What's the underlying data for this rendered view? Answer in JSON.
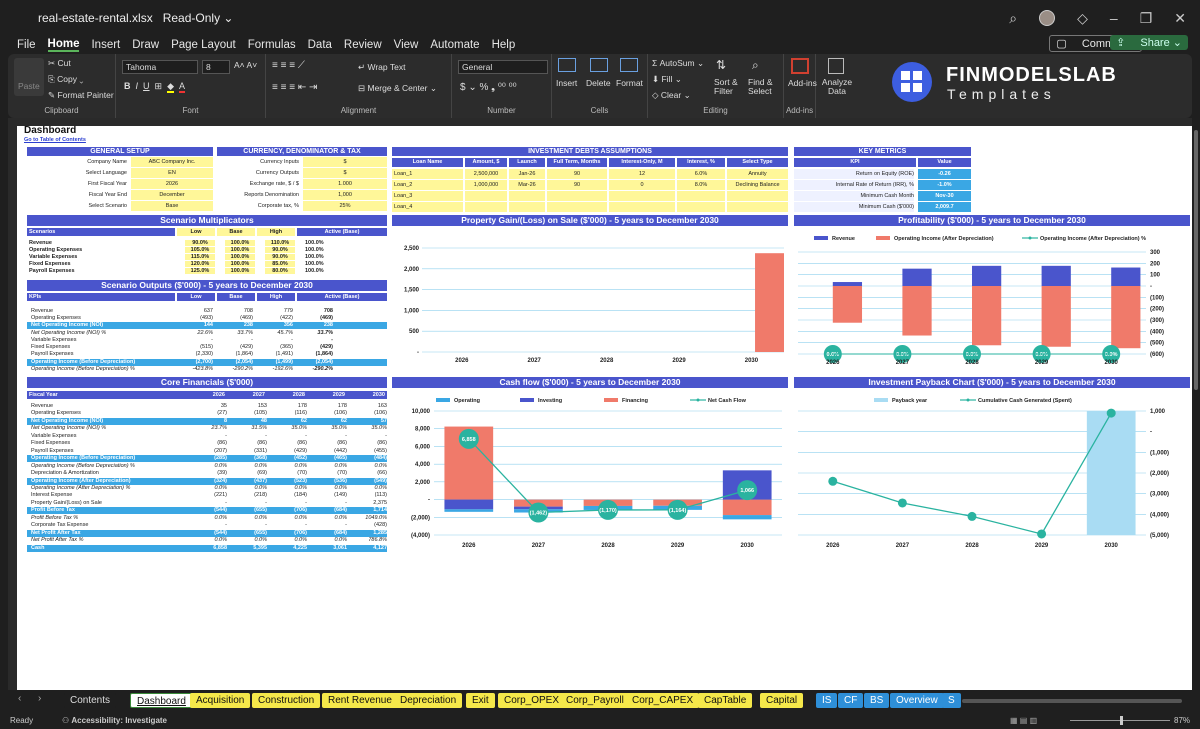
{
  "window": {
    "filename": "real-estate-rental.xlsx",
    "mode": "Read-Only"
  },
  "menu": [
    "File",
    "Home",
    "Insert",
    "Draw",
    "Page Layout",
    "Formulas",
    "Data",
    "Review",
    "View",
    "Automate",
    "Help"
  ],
  "menu_right": {
    "comments": "Comments",
    "share": "Share"
  },
  "ribbon": {
    "paste": "Paste",
    "cut": "Cut",
    "copy": "Copy",
    "format_painter": "Format Painter",
    "clipboard": "Clipboard",
    "font_name": "Tahoma",
    "font_size": "8",
    "font": "Font",
    "wrap_text": "Wrap Text",
    "merge_center": "Merge & Center",
    "alignment": "Alignment",
    "number_format": "General",
    "number": "Number",
    "insert": "Insert",
    "delete": "Delete",
    "format": "Format",
    "cells": "Cells",
    "autosum": "AutoSum",
    "fill": "Fill",
    "clear": "Clear",
    "sort_filter": "Sort & Filter",
    "find_select": "Find & Select",
    "editing": "Editing",
    "addins": "Add-ins",
    "addins_group": "Add-ins",
    "analyze_data": "Analyze Data"
  },
  "brand": {
    "line1": "FINMODELSLAB",
    "line2": "Templates"
  },
  "sheet": {
    "title": "Dashboard",
    "toc_link": "Go to Table of Contents",
    "general_setup": {
      "title": "GENERAL SETUP",
      "rows": [
        [
          "Company Name",
          "ABC Company Inc."
        ],
        [
          "Select Language",
          "EN"
        ],
        [
          "First Fiscal Year",
          "2026"
        ],
        [
          "Fiscal Year End",
          "December"
        ],
        [
          "Select Scenario",
          "Base"
        ]
      ]
    },
    "currency": {
      "title": "CURRENCY, DENOMINATOR & TAX",
      "rows": [
        [
          "Currency Inputs",
          "$"
        ],
        [
          "Currency Outputs",
          "$"
        ],
        [
          "Exchange rate, $ / $",
          "1.000"
        ],
        [
          "Reports Denomination",
          "1,000"
        ],
        [
          "Corporate tax, %",
          "25%"
        ]
      ]
    },
    "debts": {
      "title": "INVESTMENT DEBTS ASSUMPTIONS",
      "headers": [
        "Loan Name",
        "Amount, $",
        "Launch",
        "Full Term, Months",
        "Interest-Only, M",
        "Interest, %",
        "Select Type"
      ],
      "rows": [
        [
          "Loan_1",
          "2,500,000",
          "Jan-26",
          "90",
          "12",
          "6.0%",
          "Annuity"
        ],
        [
          "Loan_2",
          "1,000,000",
          "Mar-26",
          "90",
          "0",
          "8.0%",
          "Declining Balance"
        ],
        [
          "Loan_3",
          "",
          "",
          "",
          "",
          "",
          ""
        ],
        [
          "Loan_4",
          "",
          "",
          "",
          "",
          "",
          ""
        ]
      ]
    },
    "metrics": {
      "title": "KEY METRICS",
      "headers": [
        "KPI",
        "Value"
      ],
      "rows": [
        [
          "Return on Equity (ROE)",
          "-0.26"
        ],
        [
          "Internal Rate of Return (IRR), %",
          "-1.0%"
        ],
        [
          "Minimum Cash Month",
          "Nov-30"
        ],
        [
          "Minimum Cash ($'000)",
          "2,009.7"
        ]
      ]
    },
    "multipliers": {
      "title": "Scenario Multiplicators",
      "headers": [
        "Scenarios",
        "Low",
        "Base",
        "High",
        "Active (Base)"
      ],
      "rows": [
        [
          "Revenue",
          "90.0%",
          "100.0%",
          "110.0%",
          "100.0%"
        ],
        [
          "Operating Expenses",
          "105.0%",
          "100.0%",
          "90.0%",
          "100.0%"
        ],
        [
          "Variable Expenses",
          "115.0%",
          "100.0%",
          "90.0%",
          "100.0%"
        ],
        [
          "Fixed Expenses",
          "120.0%",
          "100.0%",
          "85.0%",
          "100.0%"
        ],
        [
          "Payroll Expenses",
          "125.0%",
          "100.0%",
          "80.0%",
          "100.0%"
        ]
      ]
    },
    "outputs": {
      "title": "Scenario Outputs ($'000) - 5 years to December 2030",
      "headers": [
        "KPIs",
        "Low",
        "Base",
        "High",
        "Active (Base)"
      ],
      "rows": [
        [
          "Revenue",
          "637",
          "708",
          "779",
          "708"
        ],
        [
          "Operating Expenses",
          "(493)",
          "(469)",
          "(422)",
          "(469)"
        ],
        [
          "Net Operating Income (NOI)",
          "144",
          "238",
          "356",
          "238"
        ],
        [
          "Net Operating Income (NOI) %",
          "22.6%",
          "33.7%",
          "45.7%",
          "33.7%"
        ],
        [
          "Variable Expenses",
          "-",
          "-",
          "-",
          "-"
        ],
        [
          "Fixed Expenses",
          "(515)",
          "(429)",
          "(365)",
          "(429)"
        ],
        [
          "Payroll Expenses",
          "(2,330)",
          "(1,864)",
          "(1,491)",
          "(1,864)"
        ],
        [
          "Operating Income (Before Depreciation)",
          "(2,700)",
          "(2,054)",
          "(1,499)",
          "(2,054)"
        ],
        [
          "Operating Income (Before Depreciation) %",
          "-423.8%",
          "-290.2%",
          "-192.6%",
          "-290.2%"
        ]
      ]
    },
    "core": {
      "title": "Core Financials ($'000)",
      "headers": [
        "Fiscal Year",
        "2026",
        "2027",
        "2028",
        "2029",
        "2030"
      ],
      "rows": [
        [
          "Revenue",
          "35",
          "153",
          "178",
          "178",
          "163"
        ],
        [
          "Operating Expenses",
          "(27)",
          "(105)",
          "(116)",
          "(106)",
          "(106)"
        ],
        [
          "Net Operating Income (NOI)",
          "8",
          "48",
          "62",
          "62",
          "57"
        ],
        [
          "Net Operating Income (NOI) %",
          "23.7%",
          "31.5%",
          "35.0%",
          "35.0%",
          "35.0%"
        ],
        [
          "Variable Expenses",
          "-",
          "-",
          "-",
          "-",
          "-"
        ],
        [
          "Fixed Expenses",
          "(86)",
          "(86)",
          "(86)",
          "(86)",
          "(86)"
        ],
        [
          "Payroll Expenses",
          "(207)",
          "(331)",
          "(429)",
          "(442)",
          "(455)"
        ],
        [
          "Operating Income (Before Depreciation)",
          "(285)",
          "(368)",
          "(452)",
          "(465)",
          "(484)"
        ],
        [
          "Operating Income (Before Depreciation) %",
          "0.0%",
          "0.0%",
          "0.0%",
          "0.0%",
          "0.0%"
        ],
        [
          "Depreciation & Amortization",
          "(39)",
          "(69)",
          "(70)",
          "(70)",
          "(66)"
        ],
        [
          "Operating Income (After Depreciation)",
          "(324)",
          "(437)",
          "(523)",
          "(536)",
          "(549)"
        ],
        [
          "Operating Income (After Depreciation) %",
          "0.0%",
          "0.0%",
          "0.0%",
          "0.0%",
          "0.0%"
        ],
        [
          "Interest Expense",
          "(221)",
          "(218)",
          "(184)",
          "(149)",
          "(113)"
        ],
        [
          "Property Gain/(Loss) on Sale",
          "-",
          "-",
          "-",
          "-",
          "2,375"
        ],
        [
          "Profit Before Tax",
          "(544)",
          "(655)",
          "(706)",
          "(684)",
          "1,714"
        ],
        [
          "Profit Before Tax %",
          "0.0%",
          "0.0%",
          "0.0%",
          "0.0%",
          "1049.0%"
        ],
        [
          "Corporate Tax Expense",
          "-",
          "-",
          "-",
          "-",
          "(428)"
        ],
        [
          "Net Profit After Tax",
          "(544)",
          "(655)",
          "(706)",
          "(684)",
          "1,285"
        ],
        [
          "Net Profit After Tax %",
          "0.0%",
          "0.0%",
          "0.0%",
          "0.0%",
          "786.8%"
        ],
        [
          "Cash",
          "6,858",
          "5,395",
          "4,225",
          "3,061",
          "4,127"
        ]
      ]
    }
  },
  "chart_data": [
    {
      "type": "bar",
      "title": "Property Gain/(Loss) on Sale ($'000) - 5 years to December 2030",
      "categories": [
        "2026",
        "2027",
        "2028",
        "2029",
        "2030"
      ],
      "values": [
        0,
        0,
        0,
        0,
        2375
      ],
      "ylim": [
        0,
        2500
      ],
      "yticks": [
        "2,500",
        "2,000",
        "1,500",
        "1,000",
        "500",
        "-"
      ],
      "color": "#f07a6a"
    },
    {
      "type": "bar",
      "title": "Profitability ($'000) - 5 years to December 2030",
      "categories": [
        "2026",
        "2027",
        "2028",
        "2029",
        "2030"
      ],
      "series": [
        {
          "name": "Revenue",
          "values": [
            35,
            153,
            178,
            178,
            163
          ],
          "color": "#4a55cc"
        },
        {
          "name": "Operating Income (After Depreciation)",
          "values": [
            -324,
            -437,
            -523,
            -536,
            -549
          ],
          "color": "#f07a6a"
        },
        {
          "name": "Operating Income (After Depreciation) %",
          "values": [
            0,
            0,
            0,
            0,
            0
          ],
          "labels": [
            "0.0%",
            "0.0%",
            "0.0%",
            "0.0%",
            "0.0%"
          ],
          "color": "#2ab3a0"
        }
      ],
      "ylim": [
        -600,
        300
      ],
      "yticks": [
        "300",
        "200",
        "100",
        "-",
        "(100)",
        "(200)",
        "(300)",
        "(400)",
        "(500)",
        "(600)"
      ]
    },
    {
      "type": "bar",
      "title": "Cash flow ($'000) - 5 years to December 2030",
      "categories": [
        "2026",
        "2027",
        "2028",
        "2029",
        "2030"
      ],
      "series": [
        {
          "name": "Operating",
          "values": [
            -285,
            -368,
            -452,
            -465,
            -484
          ],
          "color": "#3aa7e4"
        },
        {
          "name": "Investing",
          "values": [
            -1100,
            -300,
            0,
            0,
            3300
          ],
          "color": "#4a55cc"
        },
        {
          "name": "Financing",
          "values": [
            8243,
            -795,
            -718,
            -699,
            -1750
          ],
          "color": "#f07a6a"
        },
        {
          "name": "Net Cash Flow",
          "values": [
            6858,
            -1462,
            -1170,
            -1164,
            1066
          ],
          "labels": [
            "6,858",
            "(1,462)",
            "(1,170)",
            "(1,164)",
            "1,066"
          ],
          "color": "#2ab3a0"
        }
      ],
      "ylim": [
        -4000,
        10000
      ],
      "yticks": [
        "10,000",
        "8,000",
        "6,000",
        "4,000",
        "2,000",
        "-",
        "(2,000)",
        "(4,000)"
      ]
    },
    {
      "type": "bar",
      "title": "Investment Payback Chart ($'000) - 5 years to December 2030",
      "categories": [
        "2026",
        "2027",
        "2028",
        "2029",
        "2030"
      ],
      "series": [
        {
          "name": "Payback year",
          "values": [
            0,
            0,
            0,
            0,
            1
          ],
          "color": "#a9dcf3"
        },
        {
          "name": "Cumulative Cash Generated (Spent)",
          "values": [
            -2400,
            -3450,
            -4100,
            -4950,
            900
          ],
          "color": "#2ab3a0"
        }
      ],
      "ylim": [
        -5000,
        1000
      ],
      "yticks": [
        "1,000",
        "-",
        "(1,000)",
        "(2,000)",
        "(3,000)",
        "(4,000)",
        "(5,000)"
      ]
    }
  ],
  "tabs": [
    {
      "label": "Contents",
      "bg": "#1f1f1f",
      "fg": "#ddd"
    },
    {
      "label": "Dashboard",
      "bg": "#ffffff",
      "fg": "#111"
    },
    {
      "label": "Acquisition",
      "bg": "#f5e84a",
      "fg": "#111"
    },
    {
      "label": "Construction",
      "bg": "#f5e84a",
      "fg": "#111"
    },
    {
      "label": "Rent Revenue",
      "bg": "#f5e84a",
      "fg": "#111"
    },
    {
      "label": "Depreciation",
      "bg": "#f5e84a",
      "fg": "#111"
    },
    {
      "label": "Exit",
      "bg": "#f5e84a",
      "fg": "#111"
    },
    {
      "label": "Corp_OPEX",
      "bg": "#f5e84a",
      "fg": "#111"
    },
    {
      "label": "Corp_Payroll",
      "bg": "#f5e84a",
      "fg": "#111"
    },
    {
      "label": "Corp_CAPEX",
      "bg": "#f5e84a",
      "fg": "#111"
    },
    {
      "label": "CapTable",
      "bg": "#f5e84a",
      "fg": "#111"
    },
    {
      "label": "Capital",
      "bg": "#f5e84a",
      "fg": "#111"
    },
    {
      "label": "IS",
      "bg": "#2e8fd8",
      "fg": "#fff"
    },
    {
      "label": "CF",
      "bg": "#2e8fd8",
      "fg": "#fff"
    },
    {
      "label": "BS",
      "bg": "#2e8fd8",
      "fg": "#fff"
    },
    {
      "label": "Overview",
      "bg": "#2e8fd8",
      "fg": "#fff"
    },
    {
      "label": "S",
      "bg": "#2e8fd8",
      "fg": "#fff"
    }
  ],
  "status": {
    "ready": "Ready",
    "accessibility": "Accessibility: Investigate",
    "zoom": "87%"
  }
}
